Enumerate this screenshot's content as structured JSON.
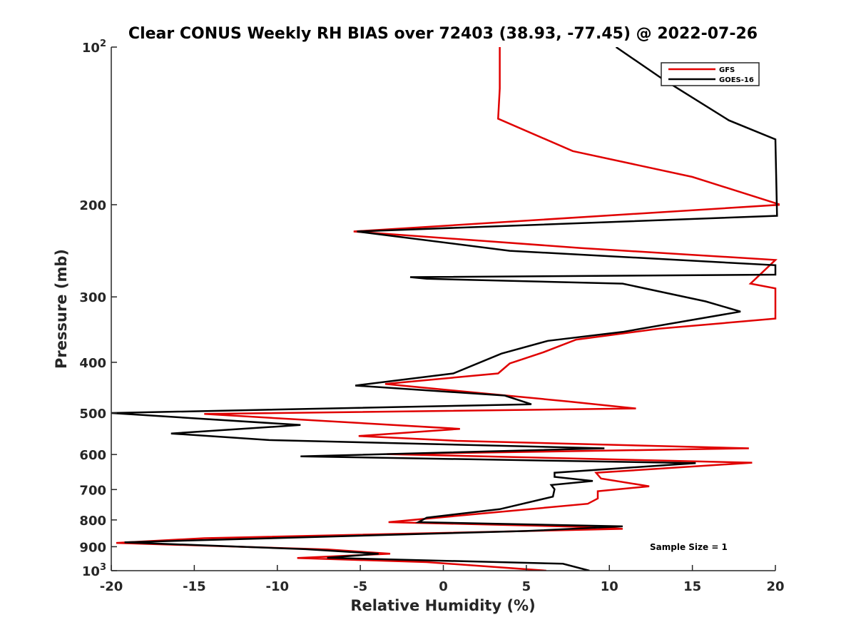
{
  "chart_data": {
    "type": "line",
    "title": "Clear CONUS Weekly RH BIAS over 72403 (38.93, -77.45) @ 2022-07-26",
    "xlabel": "Relative Humidity (%)",
    "ylabel": "Pressure (mb)",
    "xlim": [
      -20,
      20
    ],
    "ylim": [
      100,
      1000
    ],
    "y_scale": "log",
    "y_reversed": true,
    "grid": false,
    "legend_position": "top-right",
    "x_ticks": [
      "-20",
      "-15",
      "-10",
      "-5",
      "0",
      "5",
      "10",
      "15",
      "20"
    ],
    "x_tick_values": [
      -20,
      -15,
      -10,
      -5,
      0,
      5,
      10,
      15,
      20
    ],
    "y_ticks": [
      {
        "value": 100,
        "base": "10",
        "exp": "2"
      },
      {
        "value": 200,
        "label": "200"
      },
      {
        "value": 300,
        "label": "300"
      },
      {
        "value": 400,
        "label": "400"
      },
      {
        "value": 500,
        "label": "500"
      },
      {
        "value": 600,
        "label": "600"
      },
      {
        "value": 700,
        "label": "700"
      },
      {
        "value": 800,
        "label": "800"
      },
      {
        "value": 900,
        "label": "900"
      },
      {
        "value": 1000,
        "base": "10",
        "exp": "3"
      }
    ],
    "annotation": "Sample Size = 1",
    "series": [
      {
        "name": "GFS",
        "color": "#e00000",
        "points": [
          [
            3.4,
            100
          ],
          [
            3.4,
            120
          ],
          [
            3.3,
            137
          ],
          [
            7.8,
            158
          ],
          [
            15,
            177
          ],
          [
            20.3,
            200
          ],
          [
            -5.4,
            225
          ],
          [
            8.3,
            242
          ],
          [
            20,
            255
          ],
          [
            20,
            255
          ],
          [
            18.5,
            283
          ],
          [
            20,
            289
          ],
          [
            20,
            330
          ],
          [
            13,
            345
          ],
          [
            8,
            362
          ],
          [
            6,
            383
          ],
          [
            4,
            402
          ],
          [
            3.3,
            420
          ],
          [
            -3.5,
            440
          ],
          [
            7.5,
            475
          ],
          [
            11.6,
            490
          ],
          [
            -14.4,
            502
          ],
          [
            1.0,
            536
          ],
          [
            -5.1,
            553
          ],
          [
            0.8,
            565
          ],
          [
            18.4,
            584
          ],
          [
            -3.4,
            599
          ],
          [
            18.6,
            622
          ],
          [
            9.2,
            650
          ],
          [
            9.5,
            667
          ],
          [
            12.4,
            690
          ],
          [
            9.3,
            705
          ],
          [
            9.3,
            728
          ],
          [
            8.7,
            745
          ],
          [
            -3.3,
            808
          ],
          [
            8.7,
            825
          ],
          [
            10.8,
            832
          ],
          [
            -14.4,
            867
          ],
          [
            -19.7,
            885
          ],
          [
            -7,
            911
          ],
          [
            -3.2,
            928
          ],
          [
            -8.8,
            946
          ],
          [
            -1,
            963
          ],
          [
            6.2,
            1000
          ]
        ]
      },
      {
        "name": "GOES-16",
        "color": "#000000",
        "points": [
          [
            10.4,
            100
          ],
          [
            13.2,
            115
          ],
          [
            17.2,
            138
          ],
          [
            20,
            150
          ],
          [
            20.1,
            210
          ],
          [
            -5.2,
            225
          ],
          [
            4.0,
            245
          ],
          [
            20,
            261
          ],
          [
            20,
            272
          ],
          [
            -2,
            275
          ],
          [
            -1,
            277
          ],
          [
            10.8,
            283
          ],
          [
            15.8,
            306
          ],
          [
            17.9,
            320
          ],
          [
            10.8,
            350
          ],
          [
            6.3,
            364
          ],
          [
            3.5,
            385
          ],
          [
            0.6,
            420
          ],
          [
            -5.3,
            443
          ],
          [
            3.7,
            463
          ],
          [
            5.3,
            481
          ],
          [
            -20,
            500
          ],
          [
            -8.6,
            527
          ],
          [
            -16.4,
            547
          ],
          [
            -10.5,
            563
          ],
          [
            9.7,
            584
          ],
          [
            -8.6,
            605
          ],
          [
            15.2,
            623
          ],
          [
            6.7,
            650
          ],
          [
            6.7,
            662
          ],
          [
            9.0,
            674
          ],
          [
            6.5,
            686
          ],
          [
            6.7,
            699
          ],
          [
            6.6,
            722
          ],
          [
            3.4,
            763
          ],
          [
            -1,
            792
          ],
          [
            -1.5,
            808
          ],
          [
            10.8,
            823
          ],
          [
            5,
            840
          ],
          [
            -19.2,
            883
          ],
          [
            -8.3,
            910
          ],
          [
            -3.9,
            928
          ],
          [
            -7,
            945
          ],
          [
            7.2,
            970
          ],
          [
            8.8,
            1000
          ]
        ]
      }
    ]
  }
}
